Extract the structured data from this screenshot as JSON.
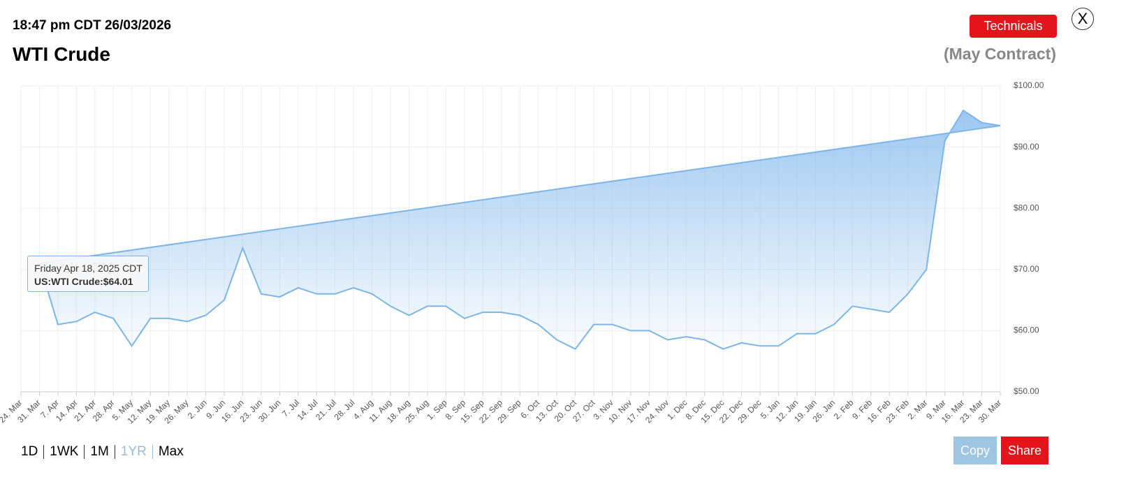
{
  "header": {
    "timestamp": "18:47 pm CDT 26/03/2026",
    "title": "WTI Crude",
    "subtitle": "(May Contract)",
    "technicals": "Technicals",
    "close": "X"
  },
  "ranges": [
    "1D",
    "1WK",
    "1M",
    "1YR",
    "Max"
  ],
  "buttons": {
    "copy": "Copy",
    "share": "Share"
  },
  "tooltip": {
    "date": "Friday Apr 18, 2025 CDT",
    "value": "US:WTI Crude:$64.01"
  },
  "chart_data": {
    "type": "area",
    "categories": [
      "24. Mar",
      "31. Mar",
      "7. Apr",
      "14. Apr",
      "21. Apr",
      "28. Apr",
      "5. May",
      "12. May",
      "19. May",
      "26. May",
      "2. Jun",
      "9. Jun",
      "16. Jun",
      "23. Jun",
      "30. Jun",
      "7. Jul",
      "14. Jul",
      "21. Jul",
      "28. Jul",
      "4. Aug",
      "11. Aug",
      "18. Aug",
      "25. Aug",
      "1. Sep",
      "8. Sep",
      "15. Sep",
      "22. Sep",
      "29. Sep",
      "6. Oct",
      "13. Oct",
      "20. Oct",
      "27. Oct",
      "3. Nov",
      "10. Nov",
      "17. Nov",
      "24. Nov",
      "1. Dec",
      "8. Dec",
      "15. Dec",
      "22. Dec",
      "29. Dec",
      "5. Jan",
      "12. Jan",
      "19. Jan",
      "26. Jan",
      "2. Feb",
      "9. Feb",
      "16. Feb",
      "23. Feb",
      "2. Mar",
      "9. Mar",
      "16. Mar",
      "23. Mar",
      "30. Mar"
    ],
    "series": [
      {
        "name": "US:WTI Crude",
        "color": "#7cb5ec",
        "values": [
          null,
          71,
          61,
          61.5,
          63,
          62,
          57.5,
          62,
          62,
          61.5,
          62.5,
          65,
          73.5,
          66,
          65.5,
          67,
          66,
          66,
          67,
          66,
          64,
          62.5,
          64,
          64,
          62,
          63,
          63,
          62.5,
          61,
          58.5,
          57,
          61,
          61,
          60,
          60,
          58.5,
          59,
          58.5,
          57,
          58,
          57.5,
          57.5,
          59.5,
          59.5,
          61,
          64,
          63.5,
          63,
          66,
          70,
          91,
          96,
          94,
          93.5
        ]
      }
    ],
    "ylim": [
      50,
      100
    ],
    "yticks": [
      {
        "value": 50,
        "label": "$50.00"
      },
      {
        "value": 60,
        "label": "$60.00"
      },
      {
        "value": 70,
        "label": "$70.00"
      },
      {
        "value": 80,
        "label": "$80.00"
      },
      {
        "value": 90,
        "label": "$90.00"
      },
      {
        "value": 100,
        "label": "$100.00"
      }
    ],
    "grid": true
  }
}
